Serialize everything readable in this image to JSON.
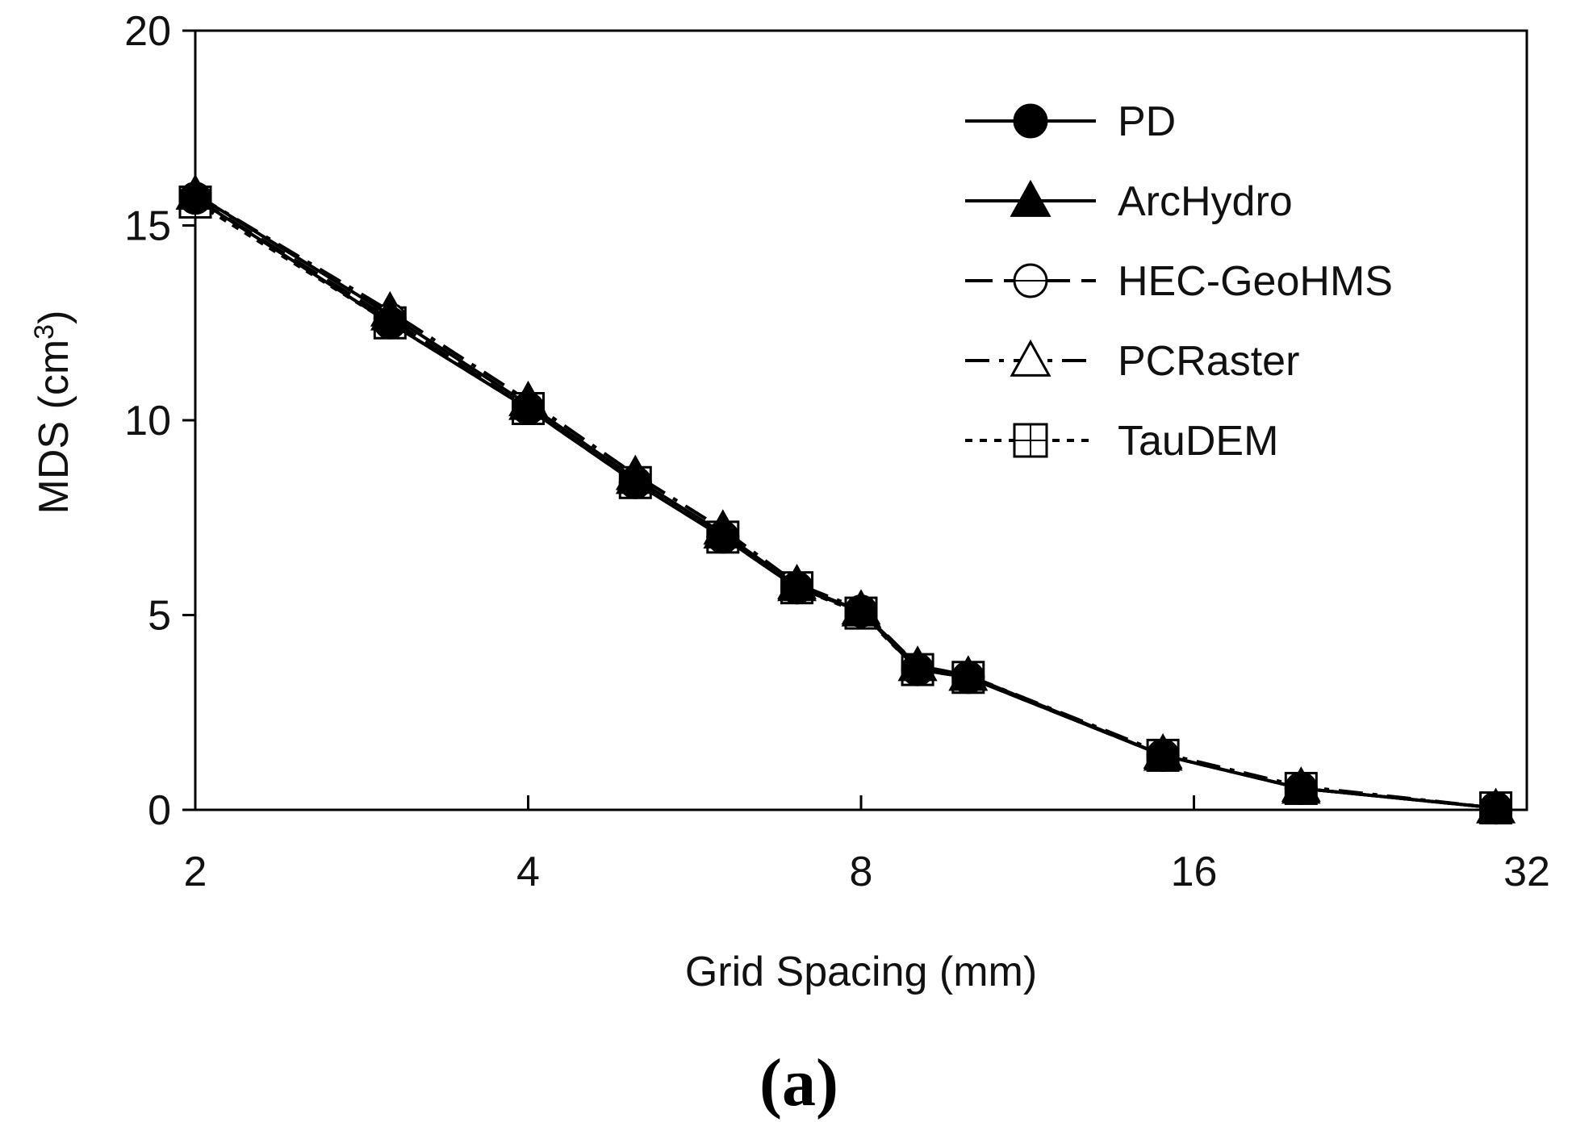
{
  "chart_data": {
    "type": "line",
    "title": "",
    "xlabel": "Grid Spacing (mm)",
    "ylabel": "MDS (cm3)",
    "ylabel_main": "MDS (cm",
    "ylabel_sup": "3",
    "ylabel_close": ")",
    "x_scale": "log2",
    "xlim": [
      2,
      32
    ],
    "ylim": [
      0,
      20
    ],
    "x_ticks": [
      2,
      4,
      8,
      16,
      32
    ],
    "x_tick_labels": [
      "2",
      "4",
      "8",
      "16",
      "32"
    ],
    "y_ticks": [
      0,
      5,
      10,
      15,
      20
    ],
    "y_tick_labels": [
      "0",
      "5",
      "10",
      "15",
      "20"
    ],
    "grid": false,
    "legend_position": "top-right",
    "x": [
      2,
      3,
      4,
      5,
      6,
      7,
      8,
      9,
      10,
      15,
      20,
      30
    ],
    "series": [
      {
        "name": "PD",
        "marker": "filled-circle",
        "line": "solid",
        "values": [
          15.7,
          12.5,
          10.3,
          8.4,
          7.0,
          5.7,
          5.1,
          3.6,
          3.4,
          1.4,
          0.55,
          0.05
        ]
      },
      {
        "name": "ArcHydro",
        "marker": "filled-triangle",
        "line": "solid",
        "values": [
          15.8,
          12.7,
          10.4,
          8.5,
          7.1,
          5.75,
          5.1,
          3.7,
          3.45,
          1.4,
          0.55,
          0.05
        ]
      },
      {
        "name": "HEC-GeoHMS",
        "marker": "open-circle",
        "line": "long-dash",
        "values": [
          15.7,
          12.6,
          10.3,
          8.4,
          7.0,
          5.7,
          5.1,
          3.6,
          3.4,
          1.4,
          0.55,
          0.05
        ]
      },
      {
        "name": "PCRaster",
        "marker": "open-triangle",
        "line": "dash-dot",
        "values": [
          15.8,
          12.8,
          10.5,
          8.6,
          7.2,
          5.8,
          5.15,
          3.7,
          3.45,
          1.45,
          0.6,
          0.05
        ]
      },
      {
        "name": "TauDEM",
        "marker": "open-square",
        "line": "short-dash",
        "values": [
          15.6,
          12.5,
          10.3,
          8.4,
          7.0,
          5.7,
          5.05,
          3.6,
          3.4,
          1.4,
          0.55,
          0.05
        ]
      }
    ],
    "panel_label": "(a)"
  }
}
